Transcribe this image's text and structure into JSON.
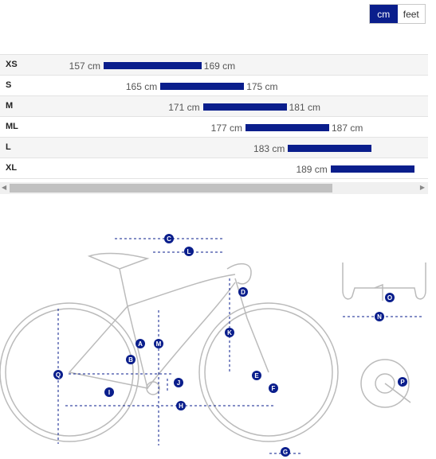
{
  "units": {
    "cm": "cm",
    "feet": "feet",
    "selected": "cm"
  },
  "sizes": [
    {
      "label": "XS",
      "min": "157 cm",
      "max": "169 cm",
      "min_cm": 157,
      "max_cm": 169
    },
    {
      "label": "S",
      "min": "165 cm",
      "max": "175 cm",
      "min_cm": 165,
      "max_cm": 175
    },
    {
      "label": "M",
      "min": "171 cm",
      "max": "181 cm",
      "min_cm": 171,
      "max_cm": 181
    },
    {
      "label": "ML",
      "min": "177 cm",
      "max": "187 cm",
      "min_cm": 177,
      "max_cm": 187
    },
    {
      "label": "L",
      "min": "183 cm",
      "max": "",
      "min_cm": 183,
      "max_cm": 193
    },
    {
      "label": "XL",
      "min": "189 cm",
      "max": "",
      "min_cm": 189,
      "max_cm": 199
    }
  ],
  "geometry_labels": [
    "A",
    "B",
    "C",
    "D",
    "E",
    "F",
    "G",
    "H",
    "I",
    "J",
    "K",
    "L",
    "M",
    "N",
    "O",
    "P",
    "Q"
  ],
  "colors": {
    "accent": "#0a1e8c",
    "line": "#bbbbbb"
  }
}
